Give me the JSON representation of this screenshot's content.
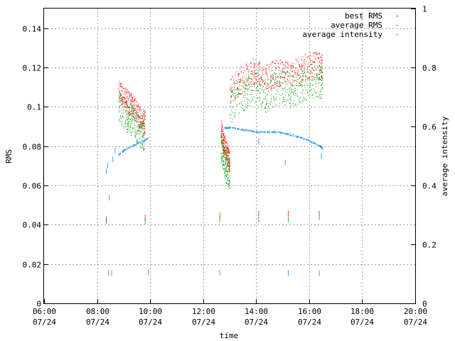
{
  "chart_data": {
    "type": "scatter",
    "xlabel": "time",
    "ylabel": "RMS",
    "y2label": "average intensity",
    "xlim": [
      "06:00",
      "20:00"
    ],
    "ylim": [
      0,
      0.15
    ],
    "y2lim": [
      0,
      1
    ],
    "grid": true,
    "legend_position": "top-right",
    "x_ticks": [
      {
        "time": "06:00",
        "date": "07/24"
      },
      {
        "time": "08:00",
        "date": "07/24"
      },
      {
        "time": "10:00",
        "date": "07/24"
      },
      {
        "time": "12:00",
        "date": "07/24"
      },
      {
        "time": "14:00",
        "date": "07/24"
      },
      {
        "time": "16:00",
        "date": "07/24"
      },
      {
        "time": "18:00",
        "date": "07/24"
      },
      {
        "time": "20:00",
        "date": "07/24"
      }
    ],
    "y_ticks": [
      "0",
      "0.02",
      "0.04",
      "0.06",
      "0.08",
      "0.1",
      "0.12",
      "0.14"
    ],
    "y2_ticks": [
      "0",
      "0.2",
      "0.4",
      "0.6",
      "0.8",
      "1"
    ],
    "series": [
      {
        "name": "best RMS",
        "color": "#ff0000",
        "axis": "y",
        "segments": [
          {
            "time": [
              "08:48",
              "09:00",
              "09:10",
              "09:20",
              "09:30",
              "09:40",
              "09:48"
            ],
            "value": [
              0.108,
              0.105,
              0.102,
              0.101,
              0.097,
              0.094,
              0.092
            ],
            "spread": 0.006
          },
          {
            "time": [
              "12:40",
              "12:45",
              "12:50",
              "12:55",
              "13:00"
            ],
            "value": [
              0.088,
              0.083,
              0.079,
              0.075,
              0.072
            ],
            "spread": 0.006
          },
          {
            "time": [
              "13:00",
              "13:20",
              "13:40",
              "14:00",
              "14:20",
              "14:40",
              "15:00",
              "15:20",
              "15:40",
              "16:00",
              "16:20",
              "16:30"
            ],
            "value": [
              0.108,
              0.113,
              0.116,
              0.119,
              0.114,
              0.117,
              0.118,
              0.116,
              0.119,
              0.121,
              0.121,
              0.12
            ],
            "spread": 0.007
          }
        ],
        "isolated_points": [
          {
            "time": "08:20",
            "value": 0.043
          },
          {
            "time": "09:48",
            "value": 0.044
          },
          {
            "time": "12:37",
            "value": 0.045
          },
          {
            "time": "14:05",
            "value": 0.046
          },
          {
            "time": "15:12",
            "value": 0.046
          },
          {
            "time": "16:22",
            "value": 0.046
          }
        ]
      },
      {
        "name": "average RMS",
        "color": "#00a000",
        "axis": "y",
        "segments": [
          {
            "time": [
              "08:48",
              "09:00",
              "09:10",
              "09:20",
              "09:30",
              "09:40",
              "09:48"
            ],
            "value": [
              0.1,
              0.097,
              0.094,
              0.093,
              0.089,
              0.087,
              0.085
            ],
            "spread": 0.008
          },
          {
            "time": [
              "12:40",
              "12:45",
              "12:50",
              "12:55",
              "13:00"
            ],
            "value": [
              0.08,
              0.075,
              0.07,
              0.067,
              0.065
            ],
            "spread": 0.008
          },
          {
            "time": [
              "13:00",
              "13:20",
              "13:40",
              "14:00",
              "14:20",
              "14:40",
              "15:00",
              "15:20",
              "15:40",
              "16:00",
              "16:20",
              "16:30"
            ],
            "value": [
              0.1,
              0.105,
              0.108,
              0.111,
              0.106,
              0.109,
              0.11,
              0.108,
              0.111,
              0.113,
              0.113,
              0.112
            ],
            "spread": 0.009
          }
        ],
        "isolated_points": [
          {
            "time": "08:20",
            "value": 0.042
          },
          {
            "time": "09:48",
            "value": 0.042
          },
          {
            "time": "12:37",
            "value": 0.043
          },
          {
            "time": "14:05",
            "value": 0.043
          },
          {
            "time": "15:12",
            "value": 0.043
          },
          {
            "time": "16:22",
            "value": 0.044
          }
        ]
      },
      {
        "name": "average intensity",
        "color": "#0080ff",
        "axis": "y2",
        "segments": [
          {
            "time": [
              "08:48",
              "09:00",
              "09:20",
              "09:40",
              "09:55"
            ],
            "value": [
              0.505,
              0.52,
              0.535,
              0.55,
              0.56
            ],
            "spread": 0.003
          },
          {
            "time": [
              "12:45",
              "13:00",
              "13:20",
              "13:40",
              "14:00",
              "14:20",
              "14:40",
              "15:00",
              "15:20",
              "15:40",
              "16:00",
              "16:20",
              "16:30"
            ],
            "value": [
              0.595,
              0.597,
              0.592,
              0.588,
              0.582,
              0.582,
              0.583,
              0.578,
              0.572,
              0.563,
              0.552,
              0.538,
              0.527
            ],
            "spread": 0.003
          }
        ],
        "isolated_points": [
          {
            "time": "08:20",
            "value": 0.45
          },
          {
            "time": "08:23",
            "value": 0.47
          },
          {
            "time": "08:27",
            "value": 0.36
          },
          {
            "time": "08:35",
            "value": 0.49
          },
          {
            "time": "08:40",
            "value": 0.52
          },
          {
            "time": "08:25",
            "value": 0.105
          },
          {
            "time": "08:32",
            "value": 0.104
          },
          {
            "time": "09:55",
            "value": 0.107
          },
          {
            "time": "12:37",
            "value": 0.106
          },
          {
            "time": "15:12",
            "value": 0.105
          },
          {
            "time": "16:22",
            "value": 0.104
          },
          {
            "time": "14:05",
            "value": 0.55
          },
          {
            "time": "15:05",
            "value": 0.48
          },
          {
            "time": "16:27",
            "value": 0.5
          }
        ]
      }
    ]
  }
}
